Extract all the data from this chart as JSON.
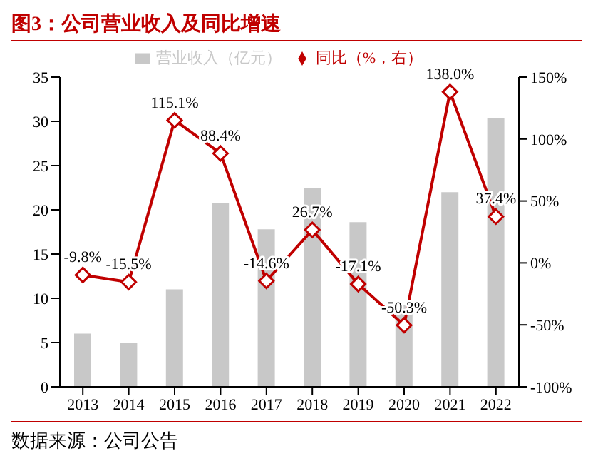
{
  "chart_data": {
    "type": "bar",
    "title": "图3：公司营业收入及同比增速",
    "categories": [
      "2013",
      "2014",
      "2015",
      "2016",
      "2017",
      "2018",
      "2019",
      "2020",
      "2021",
      "2022"
    ],
    "series": [
      {
        "name": "营业收入（亿元）",
        "color": "#c8c8c8",
        "values": [
          6.0,
          5.0,
          11.0,
          20.8,
          17.8,
          22.5,
          18.6,
          9.2,
          22.0,
          30.4
        ]
      },
      {
        "name": "同比（%，右）",
        "type": "line",
        "axis": "y2",
        "color": "#c00000",
        "marker": "diamond",
        "values": [
          -9.8,
          -15.5,
          115.1,
          88.4,
          -14.6,
          26.7,
          -17.1,
          -50.3,
          138.0,
          37.4
        ],
        "value_labels": [
          "-9.8%",
          "-15.5%",
          "115.1%",
          "88.4%",
          "-14.6%",
          "26.7%",
          "-17.1%",
          "-50.3%",
          "138.0%",
          "37.4%"
        ]
      }
    ],
    "ylim": [
      0,
      35
    ],
    "yticks": [
      0,
      5,
      10,
      15,
      20,
      25,
      30,
      35
    ],
    "y2lim": [
      -100,
      150
    ],
    "y2ticks": [
      {
        "value": -100,
        "label": "-100%"
      },
      {
        "value": -50,
        "label": "-50%"
      },
      {
        "value": 0,
        "label": "0%"
      },
      {
        "value": 50,
        "label": "50%"
      },
      {
        "value": 100,
        "label": "100%"
      },
      {
        "value": 150,
        "label": "150%"
      }
    ],
    "legend": "top",
    "grid": false,
    "annotations": [
      "数据来源：公司公告"
    ]
  }
}
